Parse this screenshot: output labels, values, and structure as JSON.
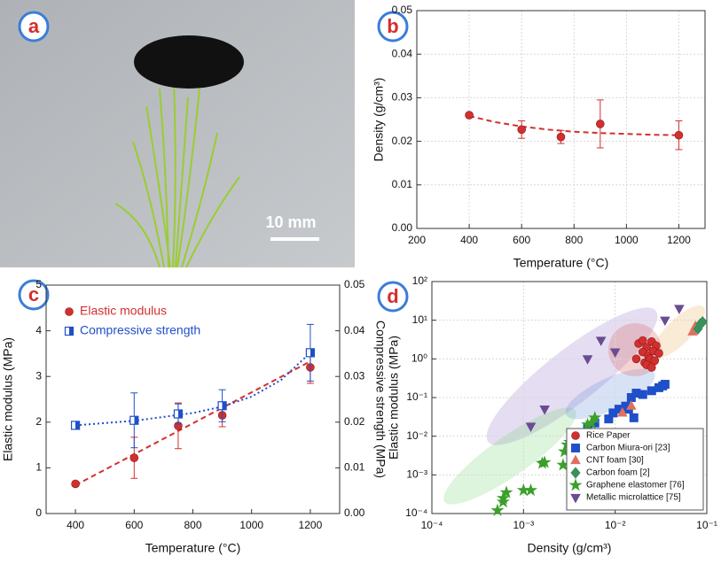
{
  "photo": {
    "label": "a",
    "scale_bar": "10 mm"
  },
  "chart_data": [
    {
      "type": "scatter",
      "label": "b",
      "x_label": "Temperature (°C)",
      "y_label": "Density (g/cm³)",
      "xlim": [
        200,
        1300
      ],
      "xticks": [
        200,
        400,
        600,
        800,
        1000,
        1200
      ],
      "ylim": [
        0,
        0.05
      ],
      "yticks": [
        {
          "value": 0,
          "label": "0.00"
        },
        0.01,
        0.02,
        0.03,
        0.04,
        0.05
      ],
      "grid": true,
      "series": [
        {
          "color": "#d32f2f",
          "marker": "circle",
          "x": [
            400,
            600,
            750,
            900,
            1200
          ],
          "values": [
            0.026,
            0.0227,
            0.021,
            0.024,
            0.0214
          ],
          "errors": [
            0.0004,
            0.002,
            0.0015,
            0.0055,
            0.0033
          ]
        }
      ],
      "fits": [
        {
          "color": "#d32f2f",
          "style": "dashed",
          "x": [
            400,
            500,
            600,
            700,
            800,
            900,
            1000,
            1100,
            1200
          ],
          "values": [
            0.0258,
            0.0244,
            0.0234,
            0.0227,
            0.0222,
            0.0219,
            0.0217,
            0.0215,
            0.0214
          ]
        }
      ]
    },
    {
      "type": "scatter",
      "label": "c",
      "x_label": "Temperature (°C)",
      "y_label": "Elastic modulus (MPa)",
      "y2_label": "Compressive strength (MPa)",
      "xlim": [
        300,
        1300
      ],
      "xticks": [
        400,
        600,
        800,
        1000,
        1200
      ],
      "ylim": [
        0,
        5
      ],
      "yticks": [
        0,
        1,
        2,
        3,
        4,
        5
      ],
      "y2lim": [
        0,
        0.05
      ],
      "y2ticks": [
        {
          "value": 0,
          "label": "0.00"
        },
        0.01,
        0.02,
        0.03,
        0.04,
        0.05
      ],
      "grid": false,
      "legend": "upper left",
      "series": [
        {
          "name": "Elastic modulus",
          "color": "#d32f2f",
          "marker": "circle",
          "x": [
            400,
            600,
            750,
            900,
            1200
          ],
          "values": [
            0.65,
            1.22,
            1.92,
            2.15,
            3.2
          ],
          "errors": [
            0.05,
            0.45,
            0.5,
            0.25,
            0.35
          ]
        },
        {
          "name": "Compressive strength",
          "color": "#1f4fc9",
          "marker": "half-square",
          "axis": "y2",
          "x": [
            400,
            600,
            750,
            900,
            1200
          ],
          "values": [
            0.0193,
            0.0204,
            0.0218,
            0.0236,
            0.0352
          ],
          "errors": [
            0.0007,
            0.006,
            0.0022,
            0.0035,
            0.0062
          ]
        }
      ],
      "fits": [
        {
          "color": "#d32f2f",
          "style": "dashed",
          "x": [
            400,
            1200
          ],
          "values": [
            0.62,
            3.33
          ]
        },
        {
          "color": "#1f4fc9",
          "style": "dotted",
          "axis": "y2",
          "x": [
            400,
            600,
            800,
            900,
            1000,
            1100,
            1200
          ],
          "values": [
            0.0193,
            0.0203,
            0.022,
            0.0234,
            0.0256,
            0.0292,
            0.0352
          ]
        }
      ]
    },
    {
      "type": "scatter",
      "label": "d",
      "x_label": "Density (g/cm³)",
      "y_label": "Elastic modulus (MPa)",
      "xscale": "log",
      "yscale": "log",
      "xlim": [
        0.0001,
        0.1
      ],
      "xticks": [
        {
          "value": 0.0001,
          "label": "10⁻⁴"
        },
        {
          "value": 0.001,
          "label": "10⁻³"
        },
        {
          "value": 0.01,
          "label": "10⁻²"
        },
        {
          "value": 0.1,
          "label": "10⁻¹"
        }
      ],
      "ylim": [
        0.0001,
        100
      ],
      "yticks": [
        {
          "value": 0.0001,
          "label": "10⁻⁴"
        },
        {
          "value": 0.001,
          "label": "10⁻³"
        },
        {
          "value": 0.01,
          "label": "10⁻²"
        },
        {
          "value": 0.1,
          "label": "10⁻¹"
        },
        {
          "value": 1,
          "label": "10⁰"
        },
        {
          "value": 10,
          "label": "10¹"
        },
        {
          "value": 100,
          "label": "10²"
        }
      ],
      "grid": true,
      "legend": "lower right",
      "series": [
        {
          "name": "Rice Paper",
          "color": "#d32f2f",
          "marker": "circle",
          "x": [
            0.018,
            0.02,
            0.022,
            0.025,
            0.028,
            0.02,
            0.023,
            0.026,
            0.03,
            0.017,
            0.021,
            0.024,
            0.027,
            0.022,
            0.025
          ],
          "values": [
            2.5,
            3,
            2,
            2.8,
            2.2,
            1.5,
            1.2,
            1.6,
            1.4,
            1.0,
            0.8,
            1.0,
            0.9,
            0.7,
            0.6
          ]
        },
        {
          "name": "Carbon Miura-ori [23]",
          "color": "#1f4fc9",
          "marker": "square",
          "x": [
            0.005,
            0.006,
            0.0085,
            0.0095,
            0.011,
            0.013,
            0.015,
            0.017,
            0.02,
            0.025,
            0.03,
            0.033,
            0.035,
            0.014,
            0.016
          ],
          "values": [
            0.016,
            0.022,
            0.028,
            0.04,
            0.05,
            0.06,
            0.1,
            0.13,
            0.12,
            0.15,
            0.18,
            0.2,
            0.22,
            0.05,
            0.03
          ]
        },
        {
          "name": "CNT foam [30]",
          "color": "#e07060",
          "marker": "triangle",
          "x": [
            0.012,
            0.015,
            0.07,
            0.075
          ],
          "values": [
            0.04,
            0.06,
            5,
            7
          ]
        },
        {
          "name": "Carbon foam [2]",
          "color": "#3a8f5a",
          "marker": "diamond",
          "x": [
            0.08,
            0.085,
            0.09
          ],
          "values": [
            6,
            8,
            9
          ]
        },
        {
          "name": "Graphene elastomer [76]",
          "color": "#3aa02a",
          "marker": "star",
          "x": [
            0.00052,
            0.0006,
            0.0006,
            0.00065,
            0.001,
            0.0012,
            0.0016,
            0.0017,
            0.0027,
            0.0028,
            0.003,
            0.0032,
            0.005,
            0.0055,
            0.006
          ],
          "values": [
            0.00012,
            0.0002,
            0.00025,
            0.00035,
            0.0004,
            0.0004,
            0.002,
            0.0021,
            0.0018,
            0.004,
            0.006,
            0.007,
            0.02,
            0.022,
            0.03
          ]
        },
        {
          "name": "Metallic microlattice [75]",
          "color": "#6a4c93",
          "marker": "down-triangle",
          "x": [
            0.0012,
            0.0017,
            0.005,
            0.007,
            0.01,
            0.035,
            0.05
          ],
          "values": [
            0.018,
            0.05,
            1,
            3,
            1.5,
            10,
            20
          ]
        }
      ]
    }
  ]
}
